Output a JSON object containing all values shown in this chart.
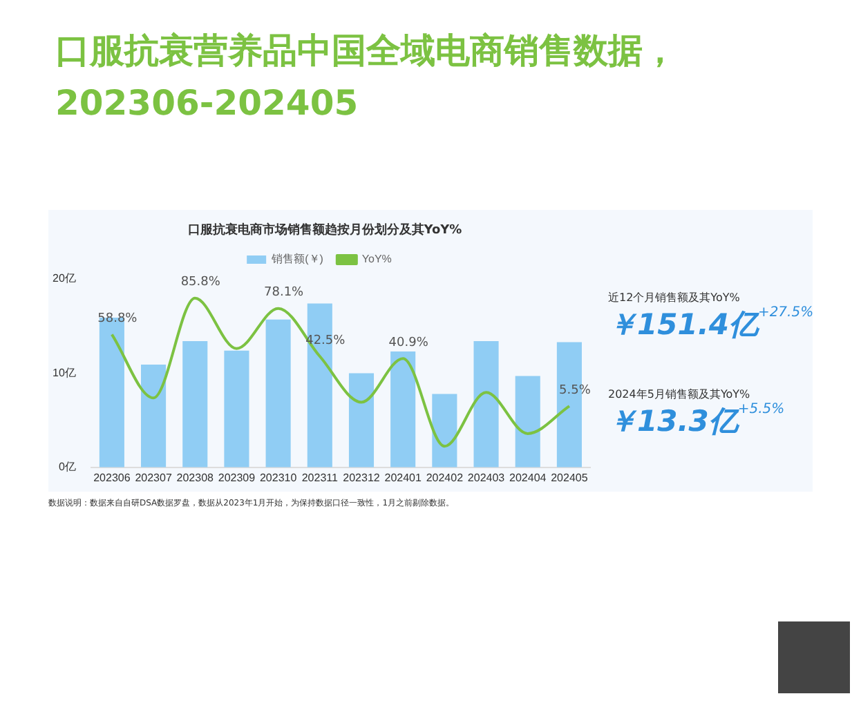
{
  "chart_data": {
    "type": "bar",
    "title": "口服抗衰营养品中国全域电商销售数据，202306-202405",
    "subtitle": "口服抗衰电商市场销售额趋按月份划分及其YoY%",
    "categories": [
      "202306",
      "202307",
      "202308",
      "202309",
      "202310",
      "202311",
      "202312",
      "202401",
      "202402",
      "202403",
      "202404",
      "202405"
    ],
    "series": [
      {
        "name": "销售额(￥)",
        "color": "#90cdf4",
        "values": [
          15.9,
          10.9,
          13.4,
          12.4,
          15.7,
          17.4,
          10.0,
          12.3,
          7.8,
          13.4,
          9.7,
          13.3
        ]
      },
      {
        "name": "YoY%",
        "type": "line",
        "axis": "y2",
        "color": "#7cc242",
        "marker": "none",
        "values": [
          58.8,
          11.6,
          85.8,
          48.3,
          78.1,
          42.5,
          8.4,
          40.9,
          -24.3,
          15.7,
          -14.9,
          5.5
        ],
        "value_labels": [
          "58.8%",
          null,
          "85.8%",
          null,
          "78.1%",
          "42.5%",
          null,
          "40.9%",
          null,
          null,
          null,
          "5.5%"
        ]
      }
    ],
    "ylim": [
      0,
      20
    ],
    "yticks": [
      {
        "value": 0,
        "label": "0亿"
      },
      {
        "value": 10,
        "label": "10亿"
      },
      {
        "value": 20,
        "label": "20亿"
      }
    ],
    "grid": false,
    "legend": "top",
    "annotations": [
      "近12个月销售额及其YoY%",
      "￥151.4亿",
      "+27.5%",
      "2024年5月销售额及其YoY%",
      "￥13.3亿",
      "+5.5%",
      "数据说明：数据来自自研DSA数据罗盘，数据从2023年1月开始，为保持数据口径一致性，1月之前剔除数据。"
    ]
  }
}
